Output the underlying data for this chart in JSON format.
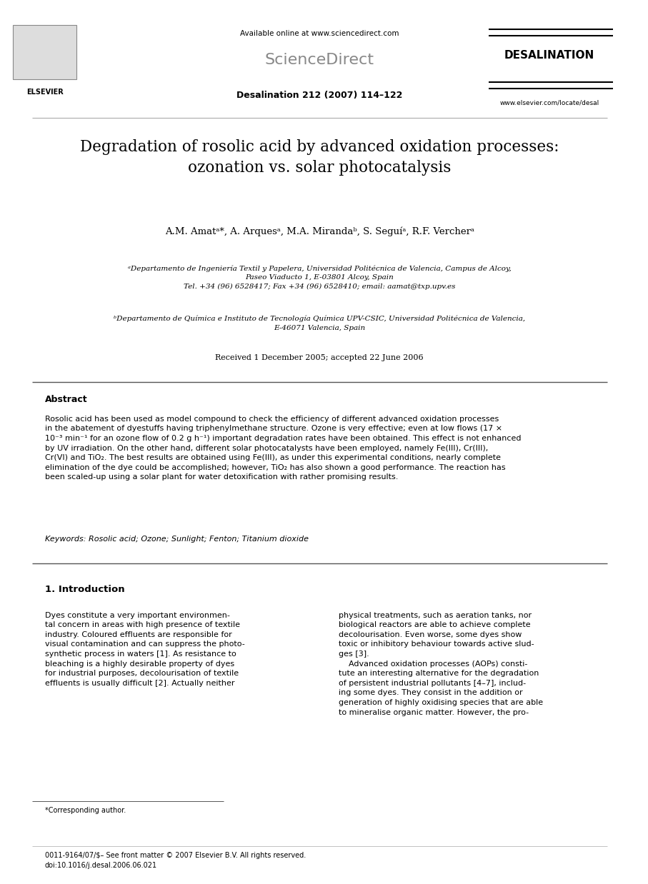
{
  "bg_color": "#ffffff",
  "page_width": 9.07,
  "page_height": 12.38,
  "header": {
    "available_online": "Available online at www.sciencedirect.com",
    "journal_name": "ScienceDirect",
    "journal_issue": "Desalination 212 (2007) 114–122",
    "desalination_label": "DESALINATION",
    "elsevier_label": "ELSEVIER",
    "website": "www.elsevier.com/locate/desal"
  },
  "title": "Degradation of rosolic acid by advanced oxidation processes:\nozonation vs. solar photocatalysis",
  "authors": "A.M. Amatᵃ*, A. Arquesᵃ, M.A. Mirandaᵇ, S. Seguíᵃ, R.F. Vercherᵃ",
  "affiliation_a": "ᵃDepartamento de Ingeniería Textil y Papelera, Universidad Politécnica de Valencia, Campus de Alcoy,\nPaseo Viaducto 1, E-03801 Alcoy, Spain\nTel. +34 (96) 6528417; Fax +34 (96) 6528410; email: aamat@txp.upv.es",
  "affiliation_b": "ᵇDepartamento de Química e Instituto de Tecnología Química UPV-CSIC, Universidad Politécnica de Valencia,\nE-46071 Valencia, Spain",
  "received": "Received 1 December 2005; accepted 22 June 2006",
  "abstract_title": "Abstract",
  "abstract_text": "Rosolic acid has been used as model compound to check the efficiency of different advanced oxidation processes\nin the abatement of dyestuffs having triphenylmethane structure. Ozone is very effective; even at low flows (17 ×\n10⁻³ min⁻¹ for an ozone flow of 0.2 g h⁻¹) important degradation rates have been obtained. This effect is not enhanced\nby UV irradiation. On the other hand, different solar photocatalysts have been employed, namely Fe(III), Cr(III),\nCr(VI) and TiO₂. The best results are obtained using Fe(III), as under this experimental conditions, nearly complete\nelimination of the dye could be accomplished; however, TiO₂ has also shown a good performance. The reaction has\nbeen scaled-up using a solar plant for water detoxification with rather promising results.",
  "keywords": "Keywords: Rosolic acid; Ozone; Sunlight; Fenton; Titanium dioxide",
  "section1_title": "1. Introduction",
  "section1_col1": "Dyes constitute a very important environmen-\ntal concern in areas with high presence of textile\nindustry. Coloured effluents are responsible for\nvisual contamination and can suppress the photo-\nsynthetic process in waters [1]. As resistance to\nbleaching is a highly desirable property of dyes\nfor industrial purposes, decolourisation of textile\neffluents is usually difficult [2]. Actually neither",
  "section1_col2": "physical treatments, such as aeration tanks, nor\nbiological reactors are able to achieve complete\ndecolourisation. Even worse, some dyes show\ntoxic or inhibitory behaviour towards active slud-\nges [3].\n    Advanced oxidation processes (AOPs) consti-\ntute an interesting alternative for the degradation\nof persistent industrial pollutants [4–7], includ-\ning some dyes. They consist in the addition or\ngeneration of highly oxidising species that are able\nto mineralise organic matter. However, the pro-",
  "footnote_star": "*Corresponding author.",
  "footer_text": "0011-9164/07/$– See front matter © 2007 Elsevier B.V. All rights reserved.\ndoi:10.1016/j.desal.2006.06.021"
}
